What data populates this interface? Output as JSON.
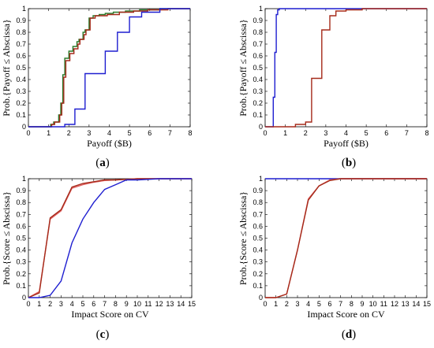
{
  "colors": {
    "blue": "#1f1fd0",
    "red": "#a52a1a",
    "green": "#2a7a2a",
    "pink": "#e06060"
  },
  "chart_data": [
    {
      "type": "line",
      "id": "a",
      "caption_letter": "a",
      "xlabel": "Payoff ($B)",
      "ylabel": "Prob.{Payoff ≤ Abscissa}",
      "xlim": [
        0,
        8
      ],
      "ylim": [
        0,
        1
      ],
      "xticks": [
        "0",
        "1",
        "2",
        "3",
        "4",
        "5",
        "6",
        "7",
        "8"
      ],
      "yticks": [
        "0",
        "0.1",
        "0.2",
        "0.3",
        "0.4",
        "0.5",
        "0.6",
        "0.7",
        "0.8",
        "0.9",
        "1"
      ],
      "step": true,
      "grid": false,
      "series": [
        {
          "color_key": "green",
          "x": [
            0,
            1.1,
            1.1,
            1.25,
            1.25,
            1.5,
            1.5,
            1.6,
            1.6,
            1.7,
            1.7,
            1.8,
            1.8,
            2.0,
            2.0,
            2.2,
            2.2,
            2.4,
            2.4,
            2.5,
            2.5,
            2.7,
            2.7,
            2.8,
            2.8,
            3.0,
            3.0,
            3.2,
            3.2,
            3.5,
            3.5,
            3.8,
            3.8,
            4.2,
            4.2,
            4.8,
            4.8,
            5.5,
            5.5,
            6.5,
            6.5,
            7.2,
            7.2,
            8
          ],
          "y": [
            0,
            0,
            0.02,
            0.02,
            0.04,
            0.04,
            0.1,
            0.1,
            0.2,
            0.2,
            0.44,
            0.44,
            0.58,
            0.58,
            0.64,
            0.64,
            0.68,
            0.68,
            0.72,
            0.72,
            0.74,
            0.74,
            0.8,
            0.8,
            0.82,
            0.82,
            0.92,
            0.92,
            0.94,
            0.94,
            0.95,
            0.95,
            0.96,
            0.96,
            0.97,
            0.97,
            0.98,
            0.98,
            0.99,
            0.99,
            1.0,
            1.0,
            1.0,
            1.0
          ]
        },
        {
          "color_key": "red",
          "x": [
            0,
            1.15,
            1.15,
            1.3,
            1.3,
            1.55,
            1.55,
            1.65,
            1.65,
            1.75,
            1.75,
            1.85,
            1.85,
            2.05,
            2.05,
            2.25,
            2.25,
            2.45,
            2.45,
            2.55,
            2.55,
            2.75,
            2.75,
            2.85,
            2.85,
            3.05,
            3.05,
            3.3,
            3.3,
            3.9,
            3.9,
            4.5,
            4.5,
            5.2,
            5.2,
            5.9,
            5.9,
            6.9,
            6.9,
            8
          ],
          "y": [
            0,
            0,
            0.02,
            0.02,
            0.04,
            0.04,
            0.1,
            0.1,
            0.2,
            0.2,
            0.42,
            0.42,
            0.56,
            0.56,
            0.62,
            0.62,
            0.66,
            0.66,
            0.7,
            0.7,
            0.74,
            0.74,
            0.78,
            0.78,
            0.82,
            0.82,
            0.92,
            0.92,
            0.94,
            0.94,
            0.95,
            0.95,
            0.97,
            0.97,
            0.98,
            0.98,
            0.99,
            0.99,
            1.0,
            1.0
          ]
        },
        {
          "color_key": "blue",
          "x": [
            0,
            1.8,
            1.8,
            2.3,
            2.3,
            2.8,
            2.8,
            3.8,
            3.8,
            4.4,
            4.4,
            5.0,
            5.0,
            5.6,
            5.6,
            6.5,
            6.5,
            7.0,
            7.0,
            8
          ],
          "y": [
            0,
            0,
            0.02,
            0.02,
            0.15,
            0.15,
            0.45,
            0.45,
            0.64,
            0.64,
            0.8,
            0.8,
            0.93,
            0.93,
            0.97,
            0.97,
            1.0,
            1.0,
            1.0,
            1.0
          ]
        }
      ]
    },
    {
      "type": "line",
      "id": "b",
      "caption_letter": "b",
      "xlabel": "Payoff ($B)",
      "ylabel": "Prob.{Payoff ≤ Abscissa}",
      "xlim": [
        0,
        8
      ],
      "ylim": [
        0,
        1
      ],
      "xticks": [
        "0",
        "1",
        "2",
        "3",
        "4",
        "5",
        "6",
        "7",
        "8"
      ],
      "yticks": [
        "0",
        "0.1",
        "0.2",
        "0.3",
        "0.4",
        "0.5",
        "0.6",
        "0.7",
        "0.8",
        "0.9",
        "1"
      ],
      "step": true,
      "grid": false,
      "series": [
        {
          "color_key": "blue",
          "x": [
            0,
            0.4,
            0.4,
            0.48,
            0.48,
            0.55,
            0.55,
            0.62,
            0.62,
            0.7,
            0.7,
            8
          ],
          "y": [
            0,
            0,
            0.25,
            0.25,
            0.63,
            0.63,
            0.95,
            0.95,
            0.99,
            0.99,
            1.0,
            1.0
          ]
        },
        {
          "color_key": "red",
          "x": [
            0,
            1.5,
            1.5,
            2.0,
            2.0,
            2.3,
            2.3,
            2.8,
            2.8,
            3.2,
            3.2,
            3.5,
            3.5,
            4.0,
            4.0,
            4.8,
            4.8,
            8
          ],
          "y": [
            0,
            0,
            0.02,
            0.02,
            0.04,
            0.04,
            0.41,
            0.41,
            0.82,
            0.82,
            0.94,
            0.94,
            0.98,
            0.98,
            0.99,
            0.99,
            1.0,
            1.0
          ]
        }
      ]
    },
    {
      "type": "line",
      "id": "c",
      "caption_letter": "c",
      "xlabel": "Impact Score on CV",
      "ylabel": "Prob.{Score ≤ Abscissa}",
      "xlim": [
        0,
        15
      ],
      "ylim": [
        0,
        1
      ],
      "xticks": [
        "0",
        "1",
        "2",
        "3",
        "4",
        "5",
        "6",
        "7",
        "8",
        "9",
        "10",
        "11",
        "12",
        "13",
        "14",
        "15"
      ],
      "yticks": [
        "0",
        "0.1",
        "0.2",
        "0.3",
        "0.4",
        "0.5",
        "0.6",
        "0.7",
        "0.8",
        "0.9",
        "1"
      ],
      "step": false,
      "grid": false,
      "series": [
        {
          "color_key": "pink",
          "x": [
            0,
            1,
            2,
            3,
            4,
            5,
            6,
            7,
            8,
            9,
            10,
            11,
            12,
            13,
            14,
            15
          ],
          "y": [
            0,
            0.05,
            0.66,
            0.73,
            0.92,
            0.95,
            0.97,
            0.985,
            0.99,
            0.995,
            1.0,
            1.0,
            1.0,
            1.0,
            1.0,
            1.0
          ]
        },
        {
          "color_key": "red",
          "x": [
            0,
            1,
            2,
            3,
            4,
            5,
            6,
            7,
            8,
            9,
            10,
            11,
            12,
            13,
            14,
            15
          ],
          "y": [
            0,
            0.04,
            0.67,
            0.74,
            0.93,
            0.96,
            0.975,
            0.99,
            0.99,
            0.995,
            1.0,
            1.0,
            1.0,
            1.0,
            1.0,
            1.0
          ]
        },
        {
          "color_key": "blue",
          "x": [
            0,
            1,
            2,
            3,
            4,
            5,
            6,
            7,
            8,
            9,
            10,
            11,
            12,
            13,
            14,
            15
          ],
          "y": [
            0,
            0,
            0.02,
            0.14,
            0.46,
            0.66,
            0.8,
            0.91,
            0.95,
            0.99,
            0.99,
            0.995,
            1.0,
            1.0,
            1.0,
            1.0
          ]
        }
      ]
    },
    {
      "type": "line",
      "id": "d",
      "caption_letter": "d",
      "xlabel": "Impact Score on CV",
      "ylabel": "Prob.{Score ≤ Abscissa}",
      "xlim": [
        0,
        15
      ],
      "ylim": [
        0,
        1
      ],
      "xticks": [
        "0",
        "1",
        "2",
        "3",
        "4",
        "5",
        "6",
        "7",
        "8",
        "9",
        "10",
        "11",
        "12",
        "13",
        "14",
        "15"
      ],
      "yticks": [
        "0",
        "0.1",
        "0.2",
        "0.3",
        "0.4",
        "0.5",
        "0.6",
        "0.7",
        "0.8",
        "0.9",
        "1"
      ],
      "step": false,
      "grid": false,
      "series": [
        {
          "color_key": "blue",
          "x": [
            0,
            15
          ],
          "y": [
            1.0,
            1.0
          ]
        },
        {
          "color_key": "pink",
          "x": [
            0,
            1,
            2,
            3,
            4,
            5,
            6,
            7,
            8,
            15
          ],
          "y": [
            0,
            0,
            0.03,
            0.4,
            0.83,
            0.94,
            0.99,
            1.0,
            1.0,
            1.0
          ]
        },
        {
          "color_key": "red",
          "x": [
            0,
            1,
            2,
            3,
            4,
            5,
            6,
            7,
            8,
            15
          ],
          "y": [
            0,
            0,
            0.03,
            0.4,
            0.82,
            0.94,
            0.985,
            1.0,
            1.0,
            1.0
          ]
        }
      ]
    }
  ]
}
